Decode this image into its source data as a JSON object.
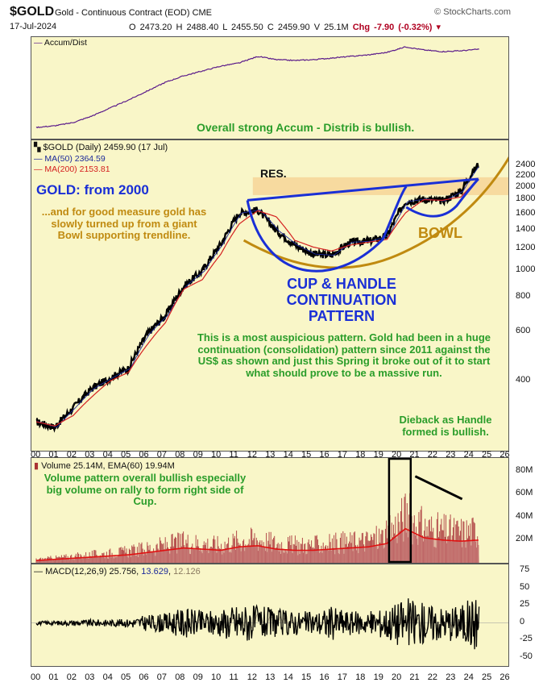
{
  "header": {
    "symbol": "$GOLD",
    "name": "Gold - Continuous Contract (EOD) CME",
    "source": "© StockCharts.com",
    "date": "17-Jul-2024",
    "open": "O 2473.20",
    "high": "H 2488.40",
    "low": "L 2455.50",
    "close": "C 2459.90",
    "volume": "V 25.1M",
    "change": "Chg -7.90 (-0.32%)"
  },
  "accum_panel": {
    "legend": "Accum/Dist",
    "annotation": "Overall strong Accum - Distrib is bullish."
  },
  "price_panel": {
    "legend_main": "$GOLD (Daily) 2459.90 (17 Jul)",
    "legend_ma50": "MA(50) 2364.59",
    "legend_ma200": "MA(200) 2153.81",
    "res_label": "RES.",
    "title_label": "GOLD: from 2000",
    "bowl_text": "...and for good measure gold has slowly turned up from a giant Bowl supporting trendline.",
    "bowl_label": "BOWL",
    "cup_line1": "CUP & HANDLE",
    "cup_line2": "CONTINUATION",
    "cup_line3": "PATTERN",
    "note": "This is a most auspicious pattern. Gold had been in a huge continuation (consolidation) pattern since 2011 against the US$ as shown and just this Spring it broke out of it to start what should prove to be a massive run.",
    "dieback": "Dieback as Handle formed is bullish.",
    "y_ticks": [
      "2400",
      "2200",
      "2000",
      "1800",
      "1600",
      "1400",
      "1200",
      "1000",
      "800",
      "600",
      "400"
    ]
  },
  "volume_panel": {
    "legend": "Volume 25.14M, EMA(60) 19.94M",
    "annotation": "Volume pattern overall bullish especially big volume on rally to form right side of Cup.",
    "y_ticks": [
      "80M",
      "60M",
      "40M",
      "20M"
    ]
  },
  "macd_panel": {
    "legend_prefix": "MACD(12,26,9) 25.756, ",
    "legend_signal": "13.629",
    "legend_sep": ", ",
    "legend_hist": "12.126",
    "y_ticks": [
      "75",
      "50",
      "25",
      "0",
      "-25",
      "-50"
    ]
  },
  "x_ticks": [
    "00",
    "01",
    "02",
    "03",
    "04",
    "05",
    "06",
    "07",
    "08",
    "09",
    "10",
    "11",
    "12",
    "13",
    "14",
    "15",
    "16",
    "17",
    "18",
    "19",
    "20",
    "21",
    "22",
    "23",
    "24",
    "25",
    "26"
  ],
  "colors": {
    "panel_bg": "#f9f6c8",
    "annotation_green": "#2a9d2a",
    "annotation_blue": "#1a2fd6",
    "annotation_gold": "#c08a10",
    "ma200": "#d42020",
    "resistance_band": "#f6d79a"
  },
  "chart_data": {
    "type": "line",
    "title": "$GOLD (Daily)",
    "price_scale": "log",
    "x": [
      "00",
      "01",
      "02",
      "03",
      "04",
      "05",
      "06",
      "07",
      "08",
      "09",
      "10",
      "11",
      "12",
      "13",
      "14",
      "15",
      "16",
      "17",
      "18",
      "19",
      "20",
      "21",
      "22",
      "23",
      "24"
    ],
    "series": [
      {
        "name": "$GOLD",
        "values": [
          285,
          272,
          320,
          375,
          410,
          445,
          590,
          690,
          880,
          1000,
          1250,
          1620,
          1660,
          1400,
          1240,
          1150,
          1140,
          1270,
          1280,
          1340,
          1780,
          1820,
          1790,
          1940,
          2459.9
        ]
      },
      {
        "name": "MA(200)",
        "values": [
          285,
          275,
          300,
          350,
          400,
          430,
          540,
          650,
          860,
          930,
          1150,
          1480,
          1650,
          1570,
          1290,
          1220,
          1180,
          1240,
          1270,
          1300,
          1620,
          1810,
          1800,
          1850,
          2153.81
        ]
      }
    ],
    "ylim": [
      230,
      2700
    ],
    "volume_ylim": [
      0,
      85
    ],
    "macd_ylim": [
      -55,
      75
    ],
    "last_macd": 25.756,
    "last_signal": 13.629,
    "last_histogram": 12.126,
    "last_volume_M": 25.14,
    "last_volume_ema_M": 19.94
  }
}
